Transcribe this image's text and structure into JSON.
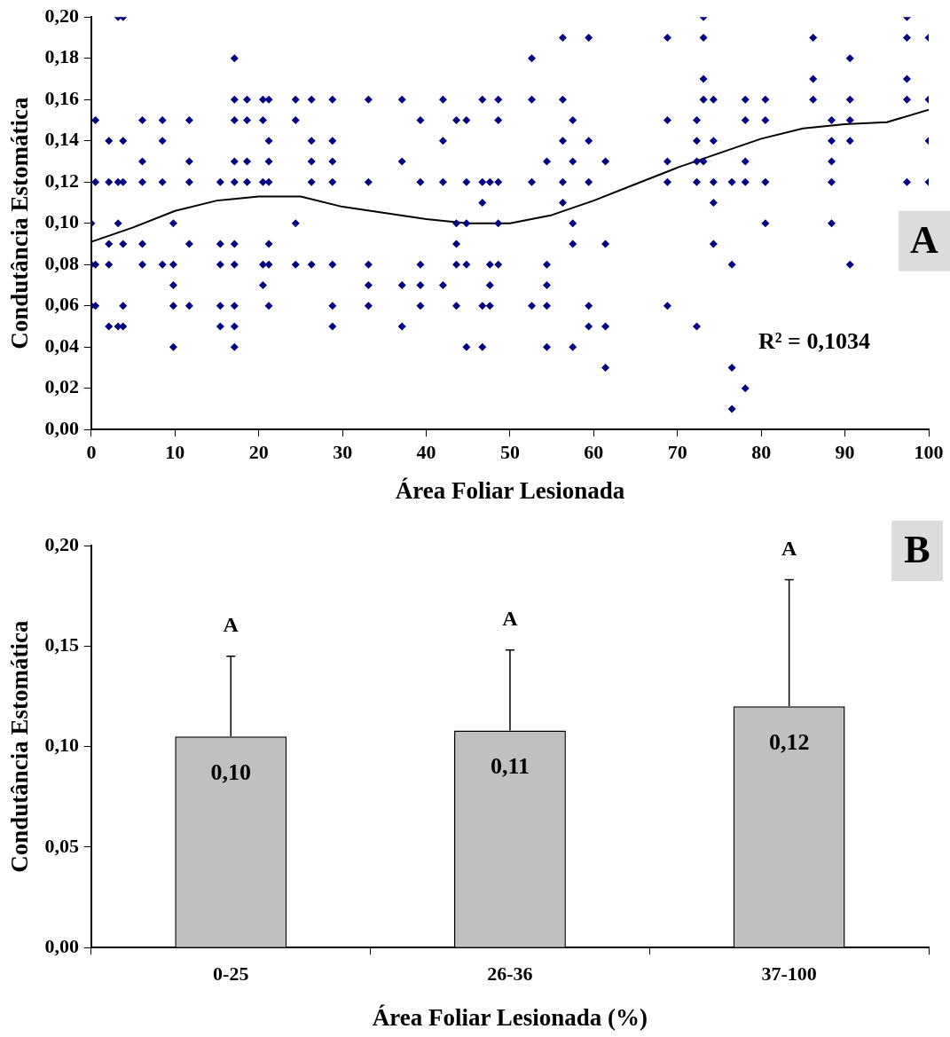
{
  "chart_data": [
    {
      "type": "scatter",
      "xlabel": "Área Foliar Lesionada",
      "ylabel": "Condutância Estomática",
      "xlim": [
        0,
        100
      ],
      "xticks": [
        0,
        10,
        20,
        30,
        40,
        50,
        60,
        70,
        80,
        90,
        100
      ],
      "ylim": [
        0,
        0.2
      ],
      "yticks": [
        {
          "value": 0,
          "label": "0,00"
        },
        {
          "value": 0.02,
          "label": "0,02"
        },
        {
          "value": 0.04,
          "label": "0,04"
        },
        {
          "value": 0.06,
          "label": "0,06"
        },
        {
          "value": 0.08,
          "label": "0,08"
        },
        {
          "value": 0.1,
          "label": "0,10"
        },
        {
          "value": 0.12,
          "label": "0,12"
        },
        {
          "value": 0.14,
          "label": "0,14"
        },
        {
          "value": 0.16,
          "label": "0,16"
        },
        {
          "value": 0.18,
          "label": "0,18"
        },
        {
          "value": 0.2,
          "label": "0,20"
        }
      ],
      "grid": false,
      "legend": false,
      "marker": "diamond",
      "annotations": [
        "A",
        "R² = 0,1034"
      ],
      "series": [
        {
          "type": "scatter",
          "color": "#000080",
          "x": [
            3.2,
            3.8,
            73.1,
            97.4,
            56.3,
            59.4,
            68.8,
            73.1,
            86.2,
            97.4,
            100,
            17.1,
            52.6,
            90.6,
            73.1,
            86.2,
            97.4,
            17.1,
            18.6,
            20.5,
            21.2,
            24.4,
            26.3,
            28.8,
            33.1,
            37.1,
            42,
            46.7,
            48.6,
            52.6,
            56.3,
            73.1,
            74.3,
            78.1,
            80.5,
            86.2,
            90.6,
            97.4,
            100,
            0.5,
            6.1,
            8.5,
            11.7,
            17.1,
            18.6,
            20.5,
            24.4,
            39.3,
            43.6,
            44.8,
            48.6,
            57.5,
            68.8,
            72.3,
            78.1,
            80.5,
            88.4,
            90.6,
            2.1,
            3.8,
            8.5,
            21.2,
            26.3,
            28.8,
            42,
            56.3,
            59.4,
            72.3,
            74.3,
            88.4,
            90.6,
            100,
            6.1,
            11.7,
            17.1,
            18.6,
            21.2,
            26.3,
            28.8,
            37.1,
            54.4,
            57.5,
            61.4,
            68.8,
            72.3,
            73.1,
            78.1,
            88.4,
            0.5,
            2.1,
            3.2,
            3.8,
            6.1,
            8.5,
            11.7,
            15.4,
            17.1,
            18.6,
            20.5,
            21.2,
            26.3,
            28.8,
            33.1,
            39.3,
            42,
            44.8,
            46.7,
            47.6,
            48.6,
            52.6,
            56.3,
            59.4,
            68.8,
            72.3,
            74.3,
            76.5,
            78.1,
            80.5,
            88.4,
            97.4,
            100,
            46.7,
            56.3,
            74.3,
            0,
            3.2,
            9.8,
            24.4,
            43.6,
            44.8,
            48.6,
            57.5,
            80.5,
            88.4,
            2.1,
            3.8,
            6.1,
            11.7,
            15.4,
            17.1,
            21.2,
            43.6,
            57.5,
            61.4,
            74.3,
            0,
            0.5,
            2.1,
            6.1,
            8.5,
            9.8,
            15.4,
            17.1,
            20.5,
            21.2,
            24.4,
            26.3,
            28.8,
            33.1,
            39.3,
            43.6,
            44.8,
            47.6,
            48.6,
            54.4,
            76.5,
            90.6,
            9.8,
            20.5,
            33.1,
            37.1,
            39.3,
            42,
            47.6,
            54.4,
            0,
            0.5,
            3.8,
            9.8,
            11.7,
            15.4,
            17.1,
            21.2,
            28.8,
            33.1,
            39.3,
            43.6,
            46.7,
            47.6,
            52.6,
            54.4,
            59.4,
            68.8,
            2.1,
            3.2,
            3.8,
            15.4,
            17.1,
            28.8,
            37.1,
            59.4,
            61.4,
            72.3,
            9.8,
            17.1,
            44.8,
            46.7,
            54.4,
            57.5,
            61.4,
            76.5,
            78.1,
            76.5
          ],
          "values": [
            0.2,
            0.2,
            0.2,
            0.2,
            0.19,
            0.19,
            0.19,
            0.19,
            0.19,
            0.19,
            0.19,
            0.18,
            0.18,
            0.18,
            0.17,
            0.17,
            0.17,
            0.16,
            0.16,
            0.16,
            0.16,
            0.16,
            0.16,
            0.16,
            0.16,
            0.16,
            0.16,
            0.16,
            0.16,
            0.16,
            0.16,
            0.16,
            0.16,
            0.16,
            0.16,
            0.16,
            0.16,
            0.16,
            0.16,
            0.15,
            0.15,
            0.15,
            0.15,
            0.15,
            0.15,
            0.15,
            0.15,
            0.15,
            0.15,
            0.15,
            0.15,
            0.15,
            0.15,
            0.15,
            0.15,
            0.15,
            0.15,
            0.15,
            0.14,
            0.14,
            0.14,
            0.14,
            0.14,
            0.14,
            0.14,
            0.14,
            0.14,
            0.14,
            0.14,
            0.14,
            0.14,
            0.14,
            0.13,
            0.13,
            0.13,
            0.13,
            0.13,
            0.13,
            0.13,
            0.13,
            0.13,
            0.13,
            0.13,
            0.13,
            0.13,
            0.13,
            0.13,
            0.13,
            0.12,
            0.12,
            0.12,
            0.12,
            0.12,
            0.12,
            0.12,
            0.12,
            0.12,
            0.12,
            0.12,
            0.12,
            0.12,
            0.12,
            0.12,
            0.12,
            0.12,
            0.12,
            0.12,
            0.12,
            0.12,
            0.12,
            0.12,
            0.12,
            0.12,
            0.12,
            0.12,
            0.12,
            0.12,
            0.12,
            0.12,
            0.12,
            0.12,
            0.11,
            0.11,
            0.11,
            0.1,
            0.1,
            0.1,
            0.1,
            0.1,
            0.1,
            0.1,
            0.1,
            0.1,
            0.1,
            0.09,
            0.09,
            0.09,
            0.09,
            0.09,
            0.09,
            0.09,
            0.09,
            0.09,
            0.09,
            0.09,
            0.08,
            0.08,
            0.08,
            0.08,
            0.08,
            0.08,
            0.08,
            0.08,
            0.08,
            0.08,
            0.08,
            0.08,
            0.08,
            0.08,
            0.08,
            0.08,
            0.08,
            0.08,
            0.08,
            0.08,
            0.08,
            0.08,
            0.07,
            0.07,
            0.07,
            0.07,
            0.07,
            0.07,
            0.07,
            0.07,
            0.06,
            0.06,
            0.06,
            0.06,
            0.06,
            0.06,
            0.06,
            0.06,
            0.06,
            0.06,
            0.06,
            0.06,
            0.06,
            0.06,
            0.06,
            0.06,
            0.06,
            0.06,
            0.05,
            0.05,
            0.05,
            0.05,
            0.05,
            0.05,
            0.05,
            0.05,
            0.05,
            0.05,
            0.04,
            0.04,
            0.04,
            0.04,
            0.04,
            0.04,
            0.03,
            0.03,
            0.02,
            0.01
          ]
        },
        {
          "type": "line",
          "color": "#000000",
          "marker": "none",
          "x": [
            0,
            5,
            10,
            15,
            20,
            25,
            30,
            35,
            40,
            45,
            50,
            55,
            60,
            65,
            70,
            75,
            80,
            85,
            90,
            95,
            100
          ],
          "values": [
            0.091,
            0.098,
            0.106,
            0.111,
            0.113,
            0.113,
            0.108,
            0.105,
            0.102,
            0.1,
            0.1,
            0.104,
            0.111,
            0.119,
            0.127,
            0.134,
            0.141,
            0.146,
            0.148,
            0.149,
            0.155
          ]
        }
      ]
    },
    {
      "type": "bar",
      "xlabel": "Área Foliar Lesionada (%)",
      "ylabel": "Condutância Estomática",
      "categories": [
        "0-25",
        "26-36",
        "37-100"
      ],
      "values": [
        0.105,
        0.108,
        0.12
      ],
      "value_labels": [
        "0,10",
        "0,11",
        "0,12"
      ],
      "errors": [
        [
          0.105,
          0.145
        ],
        [
          0.108,
          0.148
        ],
        [
          0.12,
          0.183
        ]
      ],
      "color": "#c0c0c0",
      "ylim": [
        0,
        0.2
      ],
      "yticks": [
        {
          "value": 0,
          "label": "0,00"
        },
        {
          "value": 0.05,
          "label": "0,05"
        },
        {
          "value": 0.1,
          "label": "0,10"
        },
        {
          "value": 0.15,
          "label": "0,15"
        },
        {
          "value": 0.2,
          "label": "0,20"
        }
      ],
      "grid": false,
      "legend": false,
      "annotations": [
        "B",
        "A",
        "A",
        "A"
      ]
    }
  ]
}
